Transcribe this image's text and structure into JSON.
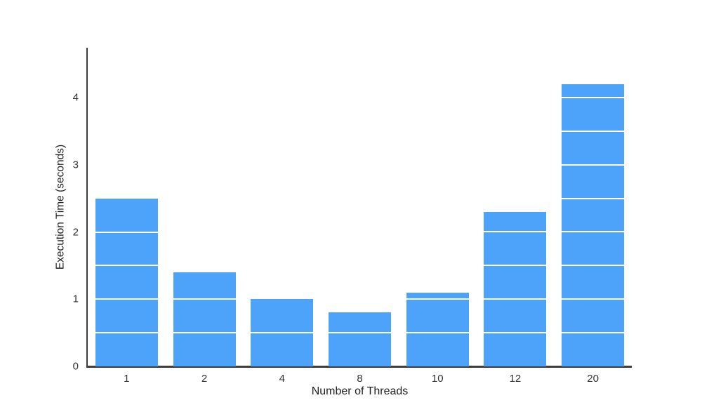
{
  "chart_data": {
    "type": "bar",
    "title": "",
    "xlabel": "Number of Threads",
    "ylabel": "Execution Time (seconds)",
    "categories": [
      "1",
      "2",
      "4",
      "8",
      "10",
      "12",
      "20"
    ],
    "values": [
      2.5,
      1.4,
      1.0,
      0.8,
      1.1,
      2.3,
      4.2
    ],
    "yticks": [
      0,
      1,
      2,
      3,
      4
    ],
    "ylim": [
      0,
      4.74
    ],
    "grid": "white lines over bars every 0.5",
    "grid_interval": 0.5,
    "legend_position": "none",
    "colors": {
      "bar": "#4da3fa",
      "grid_line": "#ffffff",
      "axis": "#3d3d3d",
      "tick_label": "#333333",
      "background": "#ffffff"
    }
  }
}
